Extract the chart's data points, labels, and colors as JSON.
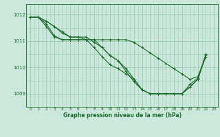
{
  "xlabel": "Graphe pression niveau de la mer (hPa)",
  "background_color": "#cce8dc",
  "grid_color": "#99ccb3",
  "line_color": "#1a6b2a",
  "xlim": [
    -0.5,
    23.5
  ],
  "ylim": [
    1008.5,
    1012.4
  ],
  "yticks": [
    1009,
    1010,
    1011,
    1012
  ],
  "xticks": [
    0,
    1,
    2,
    3,
    4,
    5,
    6,
    7,
    8,
    9,
    10,
    11,
    12,
    13,
    14,
    15,
    16,
    17,
    18,
    19,
    20,
    21,
    22,
    23
  ],
  "series": [
    [
      1011.9,
      1011.9,
      1011.75,
      1011.55,
      1011.3,
      1011.15,
      1011.15,
      1011.05,
      1010.75,
      1010.4,
      1010.1,
      1009.95,
      1009.75,
      1009.55,
      1009.15,
      1009.0,
      1009.0,
      1009.0,
      1009.0,
      1009.0,
      1009.35,
      1009.6,
      1010.5,
      null
    ],
    [
      1011.9,
      1011.9,
      1011.75,
      1011.55,
      1011.35,
      1011.15,
      1011.15,
      1011.15,
      1010.95,
      1010.75,
      1010.45,
      1010.25,
      1009.85,
      1009.45,
      1009.15,
      1009.0,
      1009.0,
      1009.0,
      1009.0,
      1009.0,
      1009.25,
      1009.55,
      1010.45,
      null
    ],
    [
      1011.9,
      1011.9,
      1011.65,
      1011.2,
      1011.05,
      1011.05,
      1011.05,
      1011.05,
      1011.05,
      1011.05,
      1011.05,
      1011.05,
      1011.05,
      1010.95,
      1010.75,
      1010.55,
      1010.35,
      1010.15,
      1009.95,
      1009.75,
      1009.55,
      1009.65,
      1010.4,
      null
    ],
    [
      1011.9,
      1011.9,
      1011.55,
      1011.15,
      1011.05,
      1011.05,
      1011.05,
      1011.05,
      1011.05,
      1010.75,
      1010.45,
      1010.25,
      1009.95,
      1009.55,
      1009.15,
      1009.0,
      1009.0,
      1009.0,
      1009.0,
      1009.0,
      1009.25,
      1009.55,
      1010.45,
      null
    ]
  ]
}
